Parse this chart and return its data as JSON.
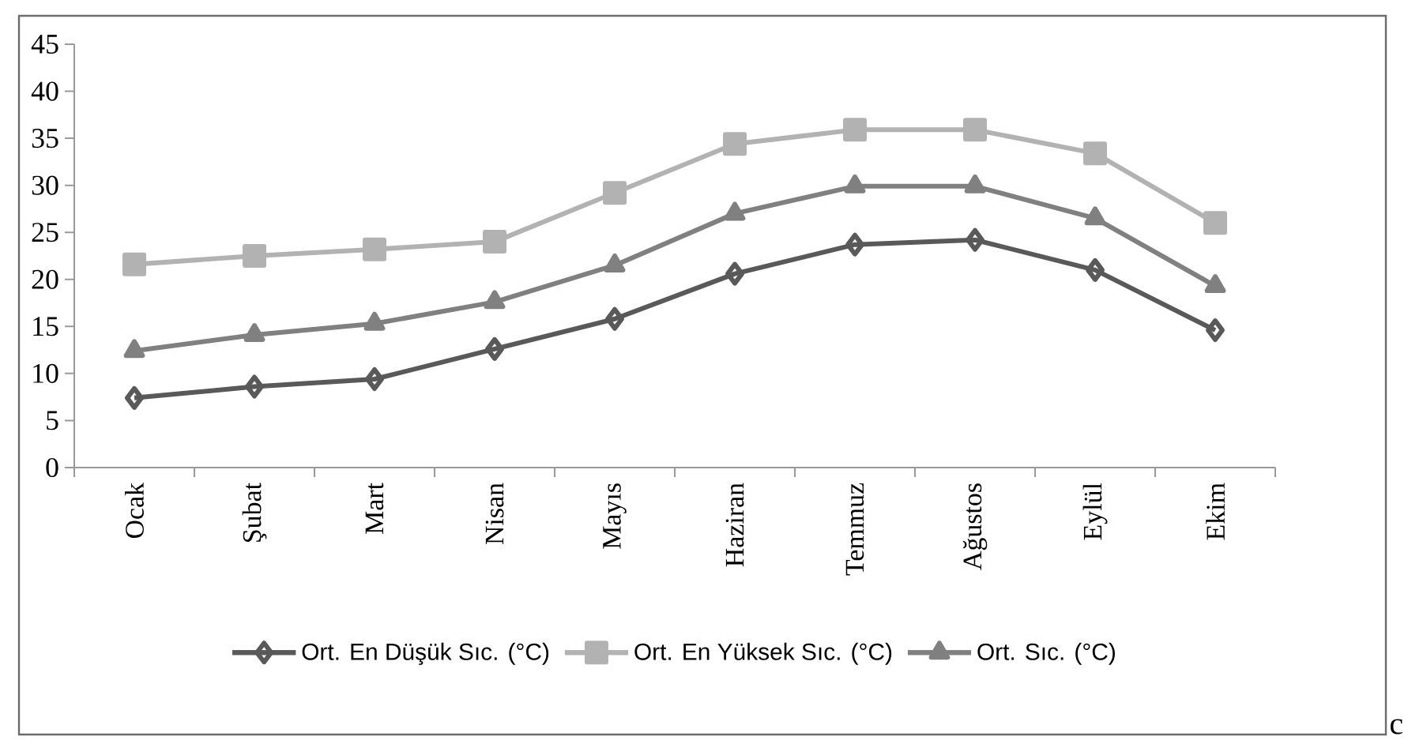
{
  "chart_data": {
    "type": "line",
    "categories": [
      "Ocak",
      "Şubat",
      "Mart",
      "Nisan",
      "Mayıs",
      "Haziran",
      "Temmuz",
      "Ağustos",
      "Eylül",
      "Ekim"
    ],
    "series": [
      {
        "name": "Ort. En Düşük Sıc. (°C)",
        "color": "#595959",
        "marker": "diamond",
        "values": [
          7.4,
          8.6,
          9.4,
          12.6,
          15.8,
          20.6,
          23.7,
          24.2,
          21.0,
          14.6
        ]
      },
      {
        "name": "Ort. En Yüksek Sıc. (°C)",
        "color": "#b2b2b2",
        "marker": "square",
        "values": [
          21.6,
          22.5,
          23.2,
          24.0,
          29.2,
          34.4,
          35.9,
          35.9,
          33.4,
          26.0
        ]
      },
      {
        "name": "Ort. Sıc. (°C)",
        "color": "#808080",
        "marker": "triangle",
        "values": [
          12.4,
          14.1,
          15.3,
          17.6,
          21.5,
          27.0,
          29.9,
          29.9,
          26.5,
          19.3
        ]
      }
    ],
    "ylim": [
      0,
      45
    ],
    "yticks": [
      0,
      5,
      10,
      15,
      20,
      25,
      30,
      35,
      40,
      45
    ],
    "grid": false,
    "legend": "bottom",
    "line_style": "solid",
    "annotations": [
      "c"
    ]
  }
}
